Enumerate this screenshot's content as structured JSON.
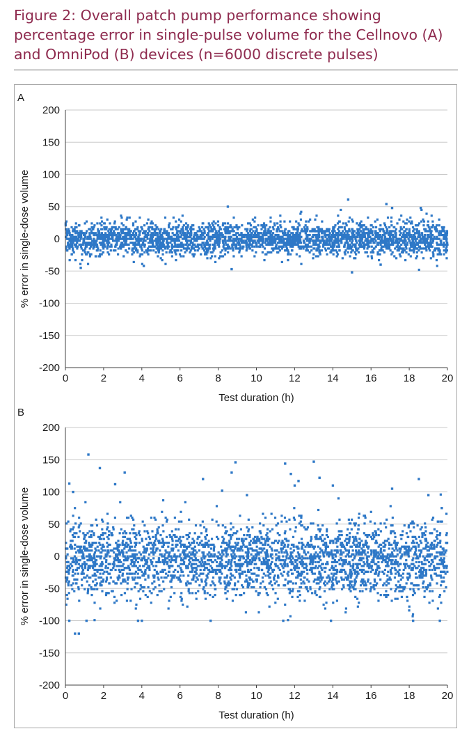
{
  "figure": {
    "title_line1": "Figure 2: Overall patch pump performance showing",
    "title_line2": "percentage error in single-pulse volume for the Cellnovo (A)",
    "title_line3": "and OmniPod (B) devices (n=6000 discrete pulses)"
  },
  "colors": {
    "title": "#8e2a4e",
    "marker": "#2e78c7",
    "grid": "#c8c8c8",
    "axis": "#404040"
  },
  "chart_data": [
    {
      "type": "scatter",
      "panel_label": "A",
      "xlabel": "Test duration (h)",
      "ylabel": "% error in single-dose volume",
      "xlim": [
        0,
        20
      ],
      "ylim": [
        -200,
        200
      ],
      "xticks": [
        0,
        2,
        4,
        6,
        8,
        10,
        12,
        14,
        16,
        18,
        20
      ],
      "yticks": [
        200,
        150,
        100,
        50,
        0,
        -50,
        -100,
        -150,
        -200
      ],
      "grid": "horizontal",
      "n_points": 3000,
      "distribution": {
        "center": 0,
        "std": 13,
        "clip": [
          -50,
          62
        ]
      },
      "points": [
        [
          8.5,
          50
        ],
        [
          14.8,
          61
        ],
        [
          15.0,
          -52
        ],
        [
          16.8,
          54
        ],
        [
          17.1,
          48
        ],
        [
          18.6,
          48
        ],
        [
          0.8,
          -45
        ],
        [
          4.1,
          -42
        ],
        [
          8.7,
          -47
        ],
        [
          16.5,
          -40
        ]
      ]
    },
    {
      "type": "scatter",
      "panel_label": "B",
      "xlabel": "Test duration (h)",
      "ylabel": "% error in single-dose volume",
      "xlim": [
        0,
        20
      ],
      "ylim": [
        -200,
        200
      ],
      "xticks": [
        0,
        2,
        4,
        6,
        8,
        10,
        12,
        14,
        16,
        18,
        20
      ],
      "yticks": [
        200,
        150,
        100,
        50,
        0,
        -50,
        -100,
        -150,
        -200
      ],
      "grid": "horizontal",
      "n_points": 3000,
      "distribution": {
        "center": -5,
        "std": 30,
        "clip": [
          -100,
          150
        ]
      },
      "points": [
        [
          1.2,
          158
        ],
        [
          1.8,
          137
        ],
        [
          0.5,
          -120
        ],
        [
          0.7,
          -120
        ],
        [
          8.9,
          146
        ],
        [
          8.7,
          130
        ],
        [
          11.5,
          144
        ],
        [
          13.0,
          147
        ],
        [
          11.8,
          128
        ],
        [
          12.2,
          117
        ],
        [
          12.0,
          110
        ],
        [
          13.3,
          122
        ],
        [
          3.8,
          -100
        ],
        [
          4.0,
          -100
        ],
        [
          1.1,
          -100
        ],
        [
          0.2,
          -100
        ],
        [
          7.6,
          -100
        ],
        [
          11.4,
          -100
        ],
        [
          13.9,
          -100
        ],
        [
          18.2,
          -100
        ],
        [
          19.6,
          -100
        ],
        [
          0.2,
          113
        ],
        [
          0.4,
          100
        ],
        [
          2.6,
          112
        ],
        [
          3.1,
          130
        ],
        [
          7.2,
          120
        ],
        [
          8.2,
          102
        ],
        [
          9.5,
          95
        ],
        [
          14.0,
          110
        ],
        [
          17.1,
          105
        ],
        [
          18.5,
          120
        ],
        [
          19.0,
          95
        ],
        [
          19.7,
          75
        ]
      ]
    }
  ]
}
